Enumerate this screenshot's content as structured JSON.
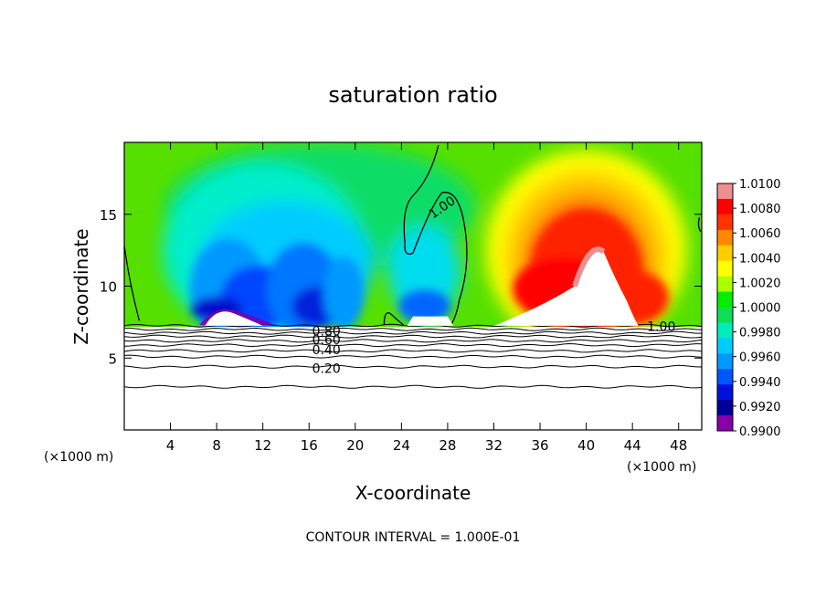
{
  "chart_data": {
    "type": "heatmap",
    "title": "saturation ratio",
    "xlabel": "X-coordinate",
    "ylabel": "Z-coordinate",
    "x_unit_label": "(×1000 m)",
    "x_unit_label_right": "(×1000 m)",
    "footer": "CONTOUR INTERVAL = 1.000E-01",
    "xlim": [
      0,
      50
    ],
    "ylim": [
      0,
      20
    ],
    "x_ticks": [
      4,
      8,
      12,
      16,
      20,
      24,
      28,
      32,
      36,
      40,
      44,
      48
    ],
    "y_ticks": [
      5,
      10,
      15
    ],
    "colorbar": {
      "range": [
        0.99,
        1.01
      ],
      "labels": [
        "1.0100",
        "1.0080",
        "1.0060",
        "1.0040",
        "1.0020",
        "1.0000",
        "0.9980",
        "0.9960",
        "0.9940",
        "0.9920",
        "0.9900"
      ],
      "colors": [
        "#ee8f8f",
        "#ff0000",
        "#ff3300",
        "#ff8800",
        "#ffcc00",
        "#ffff00",
        "#aaff00",
        "#00ee00",
        "#11dd55",
        "#00eebb",
        "#00ccff",
        "#0099ff",
        "#0055ff",
        "#0011dd",
        "#000099",
        "#8800aa"
      ]
    },
    "contour_labels": [
      {
        "text": "1.00",
        "x": 27.5,
        "z": 15.5,
        "rotate": -35
      },
      {
        "text": "1.00",
        "x": 46.5,
        "z": 7.2,
        "rotate": 0
      },
      {
        "text": "0.80",
        "x": 17.5,
        "z": 6.9,
        "rotate": 0
      },
      {
        "text": "0.60",
        "x": 17.5,
        "z": 6.3,
        "rotate": 0
      },
      {
        "text": "0.40",
        "x": 17.5,
        "z": 5.6,
        "rotate": 0
      },
      {
        "text": "0.20",
        "x": 17.5,
        "z": 4.3,
        "rotate": 0
      }
    ],
    "contour_levels_below": [
      7.25,
      7.0,
      6.75,
      6.5,
      6.2,
      5.9,
      5.5,
      5.1,
      4.4,
      3.0
    ],
    "interface_z": 7.25
  }
}
